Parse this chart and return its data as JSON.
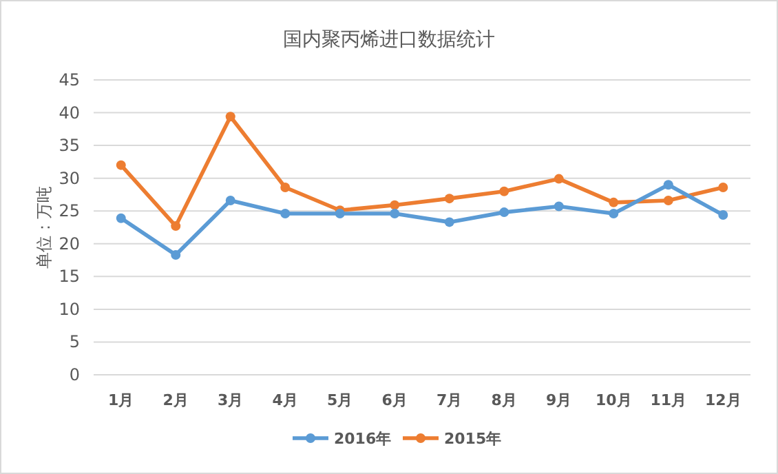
{
  "chart_data": {
    "type": "line",
    "title": "国内聚丙烯进口数据统计",
    "ylabel": "单位：万吨",
    "categories": [
      "1月",
      "2月",
      "3月",
      "4月",
      "5月",
      "6月",
      "7月",
      "8月",
      "9月",
      "10月",
      "11月",
      "12月"
    ],
    "series": [
      {
        "name": "2016年",
        "color": "#5b9bd5",
        "values": [
          23.9,
          18.3,
          26.6,
          24.6,
          24.6,
          24.6,
          23.3,
          24.8,
          25.7,
          24.6,
          29.0,
          24.4
        ]
      },
      {
        "name": "2015年",
        "color": "#ed7d31",
        "values": [
          32.0,
          22.7,
          39.4,
          28.6,
          25.1,
          25.9,
          26.9,
          28.0,
          29.9,
          26.3,
          26.6,
          28.6
        ]
      }
    ],
    "ylim": [
      0,
      45
    ],
    "yticks": [
      0,
      5,
      10,
      15,
      20,
      25,
      30,
      35,
      40,
      45
    ],
    "grid": "y",
    "legend": "bottom",
    "marker": "circle",
    "line_style": "solid"
  }
}
